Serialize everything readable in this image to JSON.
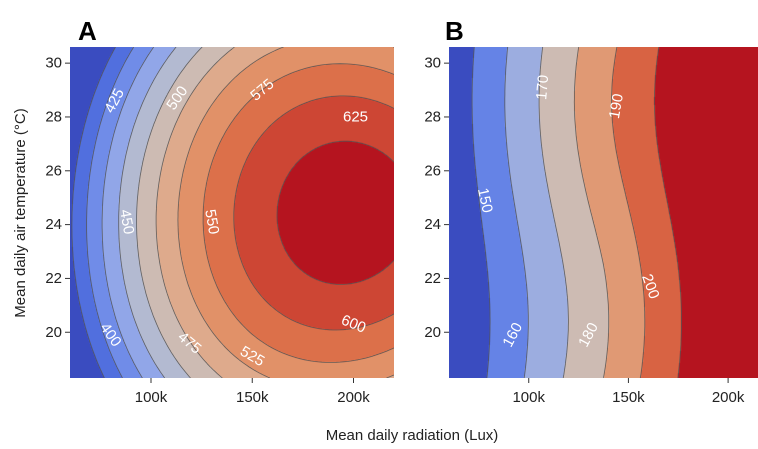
{
  "figure": {
    "xlabel": "Mean daily radiation (Lux)",
    "ylabel": "Mean daily air temperature (°C)"
  },
  "chart_data": [
    {
      "type": "heatmap",
      "panel": "A",
      "xlim": [
        60000,
        220000
      ],
      "ylim": [
        18.3,
        30.6
      ],
      "x_ticks": [
        100000,
        150000,
        200000
      ],
      "x_tick_labels": [
        "100k",
        "150k",
        "200k"
      ],
      "y_ticks": [
        20,
        22,
        24,
        26,
        28,
        30
      ],
      "y_tick_labels": [
        "20",
        "22",
        "24",
        "26",
        "28",
        "30"
      ],
      "contour_levels": [
        400,
        425,
        450,
        475,
        500,
        525,
        550,
        575,
        600,
        625
      ],
      "color_low": "#3a4cc0",
      "color_high": "#b5141f",
      "value_min": 370,
      "value_max": 640,
      "contour_labels": [
        {
          "text": "425",
          "x": 82000,
          "y": 28.6,
          "angle": -62
        },
        {
          "text": "500",
          "x": 113000,
          "y": 28.7,
          "angle": -55
        },
        {
          "text": "575",
          "x": 155000,
          "y": 29.0,
          "angle": -40
        },
        {
          "text": "625",
          "x": 201000,
          "y": 28.0,
          "angle": 0
        },
        {
          "text": "450",
          "x": 88000,
          "y": 24.1,
          "angle": 80
        },
        {
          "text": "550",
          "x": 130000,
          "y": 24.1,
          "angle": 80
        },
        {
          "text": "400",
          "x": 80000,
          "y": 19.9,
          "angle": 55
        },
        {
          "text": "475",
          "x": 119000,
          "y": 19.6,
          "angle": 40
        },
        {
          "text": "525",
          "x": 150000,
          "y": 19.1,
          "angle": 30
        },
        {
          "text": "600",
          "x": 200000,
          "y": 20.3,
          "angle": 22
        }
      ]
    },
    {
      "type": "heatmap",
      "panel": "B",
      "xlim": [
        60000,
        215000
      ],
      "ylim": [
        18.3,
        30.6
      ],
      "x_ticks": [
        100000,
        150000,
        200000
      ],
      "x_tick_labels": [
        "100k",
        "150k",
        "200k"
      ],
      "y_ticks": [
        20,
        22,
        24,
        26,
        28,
        30
      ],
      "y_tick_labels": [
        "20",
        "22",
        "24",
        "26",
        "28",
        "30"
      ],
      "contour_levels": [
        150,
        160,
        170,
        180,
        190,
        200
      ],
      "color_low": "#3a4cc0",
      "color_high": "#b5141f",
      "value_min": 138,
      "value_max": 224,
      "contour_labels": [
        {
          "text": "150",
          "x": 78000,
          "y": 24.9,
          "angle": 78
        },
        {
          "text": "170",
          "x": 107000,
          "y": 29.1,
          "angle": -85
        },
        {
          "text": "190",
          "x": 144000,
          "y": 28.4,
          "angle": -80
        },
        {
          "text": "160",
          "x": 92000,
          "y": 19.9,
          "angle": -62
        },
        {
          "text": "180",
          "x": 130000,
          "y": 19.9,
          "angle": -62
        },
        {
          "text": "200",
          "x": 161000,
          "y": 21.7,
          "angle": 70
        }
      ]
    }
  ]
}
